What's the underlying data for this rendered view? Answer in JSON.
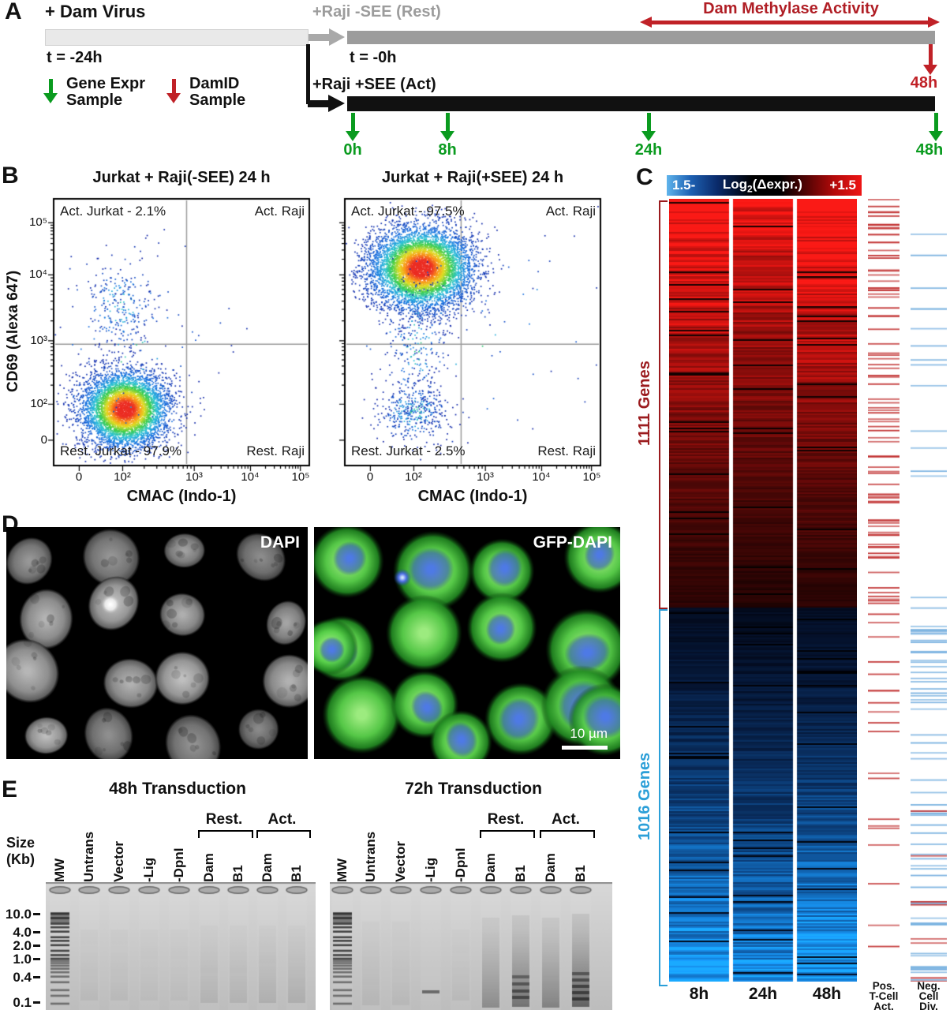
{
  "colors": {
    "sample_green": "#0a9b1f",
    "sample_red": "#c02127",
    "methylase_red": "#b01e25",
    "rest_gray": "#9c9c9c",
    "act_black": "#111111",
    "up_genes_red": "#9b1b1e",
    "down_genes_blue": "#2b9fd8"
  },
  "panelA": {
    "label": "A",
    "dam_virus": "+ Dam Virus",
    "rest_arm": "+Raji -SEE (Rest)",
    "act_arm": "+Raji +SEE (Act)",
    "t_start": "t = -24h",
    "t_zero": "t = -0h",
    "methylase_activity": "Dam Methylase Activity",
    "legend_gene_expr_line1": "Gene Expr",
    "legend_gene_expr_line2": "Sample",
    "legend_damid_line1": "DamID",
    "legend_damid_line2": "Sample",
    "timepoints_green": [
      "0h",
      "8h",
      "24h",
      "48h"
    ],
    "timepoint_red": "48h"
  },
  "panelB": {
    "label": "B"
  },
  "panelC": {
    "label": "C"
  },
  "panelD": {
    "label": "D",
    "left_tag": "DAPI",
    "right_tag": "GFP-DAPI",
    "scalebar": "10 µm"
  },
  "panelE": {
    "label": "E",
    "gel_titles": [
      "48h Transduction",
      "72h Transduction"
    ],
    "size_line1": "Size",
    "size_line2": "(Kb)",
    "sizes": [
      "10.0",
      "4.0",
      "2.0",
      "1.0",
      "0.4",
      "0.1"
    ],
    "lanes": [
      "MW",
      "Untrans",
      "Vector",
      "-Lig",
      "-DpnI",
      "Dam",
      "B1",
      "Dam",
      "B1"
    ],
    "group_rest": "Rest.",
    "group_act": "Act."
  },
  "chart_data": [
    {
      "type": "scatter",
      "panel": "B-left",
      "title": "Jurkat + Raji(-SEE) 24 h",
      "xlabel": "CMAC (Indo-1)",
      "ylabel": "CD69 (Alexa 647)",
      "x_ticks": [
        "0",
        "10²",
        "10³",
        "10⁴",
        "10⁵"
      ],
      "y_ticks": [
        "0",
        "10²",
        "10³",
        "10⁴",
        "10⁵"
      ],
      "x_decade_fracs": {
        "0": 0.1,
        "2": 0.27,
        "3": 0.55,
        "4": 0.77,
        "5": 0.965
      },
      "y_decade_fracs": {
        "0": 0.095,
        "2": 0.23,
        "3": 0.468,
        "4": 0.715,
        "5": 0.91
      },
      "gate_x_frac": 0.52,
      "gate_y_frac": 0.455,
      "quadrant_labels": {
        "top_left": "Act. Jurkat - 2.1%",
        "top_right": "Act. Raji",
        "bottom_left": "Rest. Jurkat - 97.9%",
        "bottom_right": "Rest. Raji"
      },
      "quadrant_percent": {
        "act_jurkat": 2.1,
        "rest_jurkat": 97.9
      },
      "clusters": [
        {
          "name": "resting-jurkat",
          "cx": 0.28,
          "cy": 0.21,
          "sx": 0.085,
          "sy": 0.072,
          "n": 5200,
          "style": "dense"
        },
        {
          "name": "activated-jurkat",
          "cx": 0.26,
          "cy": 0.6,
          "sx": 0.065,
          "sy": 0.085,
          "n": 240,
          "style": "sparse"
        },
        {
          "name": "background",
          "cx": 0.32,
          "cy": 0.4,
          "sx": 0.2,
          "sy": 0.22,
          "n": 110,
          "style": "sparse"
        }
      ]
    },
    {
      "type": "scatter",
      "panel": "B-right",
      "title": "Jurkat + Raji(+SEE) 24 h",
      "xlabel": "CMAC (Indo-1)",
      "ylabel": "CD69 (Alexa 647)",
      "x_ticks": [
        "0",
        "10²",
        "10³",
        "10⁴",
        "10⁵"
      ],
      "y_ticks": [
        "0",
        "10²",
        "10³",
        "10⁴",
        "10⁵"
      ],
      "x_decade_fracs": {
        "0": 0.1,
        "2": 0.27,
        "3": 0.55,
        "4": 0.77,
        "5": 0.965
      },
      "y_decade_fracs": {
        "0": 0.095,
        "2": 0.23,
        "3": 0.468,
        "4": 0.715,
        "5": 0.91
      },
      "gate_x_frac": 0.455,
      "gate_y_frac": 0.455,
      "quadrant_labels": {
        "top_left": "Act. Jurkat - 97.5%",
        "top_right": "Act. Raji",
        "bottom_left": "Rest. Jurkat - 2.5%",
        "bottom_right": "Rest. Raji"
      },
      "quadrant_percent": {
        "act_jurkat": 97.5,
        "rest_jurkat": 2.5
      },
      "clusters": [
        {
          "name": "activated-jurkat",
          "cx": 0.3,
          "cy": 0.74,
          "sx": 0.1,
          "sy": 0.078,
          "n": 6200,
          "style": "dense"
        },
        {
          "name": "resting-jurkat",
          "cx": 0.27,
          "cy": 0.2,
          "sx": 0.07,
          "sy": 0.055,
          "n": 420,
          "style": "sparse"
        },
        {
          "name": "transition",
          "cx": 0.28,
          "cy": 0.46,
          "sx": 0.06,
          "sy": 0.13,
          "n": 260,
          "style": "sparse"
        },
        {
          "name": "background",
          "cx": 0.5,
          "cy": 0.5,
          "sx": 0.26,
          "sy": 0.24,
          "n": 70,
          "style": "sparse"
        }
      ]
    },
    {
      "type": "heatmap",
      "panel": "C",
      "legend_min": "1.5-",
      "legend_label_prefix": "Log",
      "legend_label_sub": "2",
      "legend_label_suffix": "(Δexpr.)",
      "legend_max": "+1.5",
      "columns": [
        "8h",
        "24h",
        "48h"
      ],
      "up_block": {
        "label": "1111 Genes",
        "n": 1111,
        "direction": "up",
        "color": "#9b1b1e"
      },
      "down_block": {
        "label": "1016 Genes",
        "n": 1016,
        "direction": "down",
        "color": "#2b9fd8"
      },
      "annotation_columns": [
        {
          "lines": [
            "Pos.",
            "T-Cell",
            "Act."
          ],
          "tick_color": "#c23333"
        },
        {
          "lines": [
            "Neg.",
            "Cell",
            "Div."
          ],
          "tick_color": "#78b1e0"
        }
      ]
    }
  ]
}
